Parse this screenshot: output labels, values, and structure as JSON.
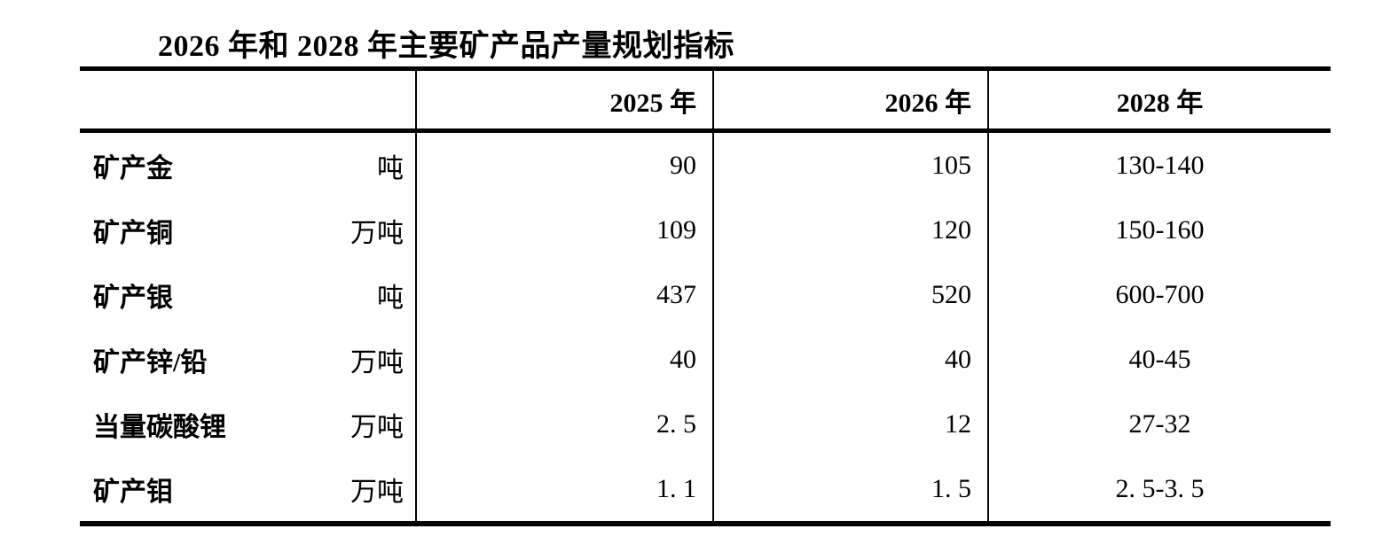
{
  "title": "2026 年和 2028 年主要矿产品产量规划指标",
  "table": {
    "headers": {
      "indicator": "",
      "y2025": "2025 年",
      "y2026": "2026 年",
      "y2028": "2028 年"
    },
    "rows": [
      {
        "label": "矿产金",
        "unit": "吨",
        "y2025": "90",
        "y2026": "105",
        "y2028": "130-140"
      },
      {
        "label": "矿产铜",
        "unit": "万吨",
        "y2025": "109",
        "y2026": "120",
        "y2028": "150-160"
      },
      {
        "label": "矿产银",
        "unit": "吨",
        "y2025": "437",
        "y2026": "520",
        "y2028": "600-700"
      },
      {
        "label": "矿产锌/铅",
        "unit": "万吨",
        "y2025": "40",
        "y2026": "40",
        "y2028": "40-45"
      },
      {
        "label": "当量碳酸锂",
        "unit": "万吨",
        "y2025": "2. 5",
        "y2026": "12",
        "y2028": "27-32"
      },
      {
        "label": "矿产钼",
        "unit": "万吨",
        "y2025": "1. 1",
        "y2026": "1. 5",
        "y2028": "2. 5-3. 5"
      }
    ],
    "colors": {
      "text": "#000000",
      "rule": "#000000",
      "background": "#ffffff"
    }
  }
}
